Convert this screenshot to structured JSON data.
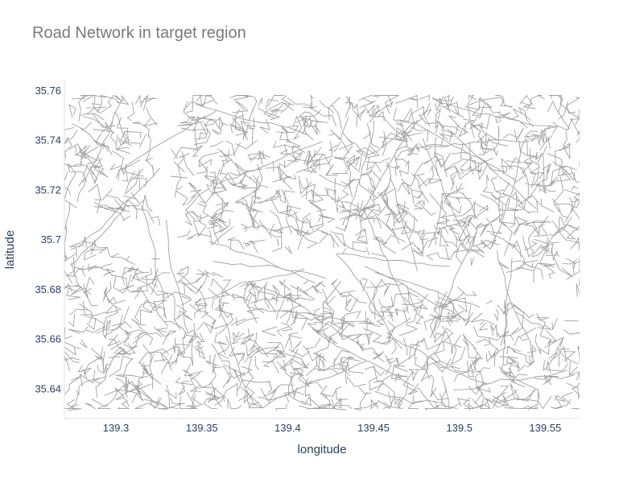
{
  "chart_data": {
    "type": "map-lines",
    "title": "Road Network in target region",
    "xlabel": "longitude",
    "ylabel": "latitude",
    "xlim": [
      139.27,
      139.57
    ],
    "ylim": [
      35.628,
      35.764
    ],
    "x_ticks": [
      139.3,
      139.35,
      139.4,
      139.45,
      139.5,
      139.55
    ],
    "y_ticks": [
      35.64,
      35.66,
      35.68,
      35.7,
      35.72,
      35.74,
      35.76
    ],
    "x_tick_labels": [
      "139.3",
      "139.35",
      "139.4",
      "139.45",
      "139.5",
      "139.55"
    ],
    "y_tick_labels": [
      "35.64",
      "35.66",
      "35.68",
      "35.7",
      "35.72",
      "35.74",
      "35.76"
    ],
    "data_extent": {
      "lon": [
        139.27,
        139.57
      ],
      "lat": [
        35.632,
        35.758
      ]
    },
    "series": [
      {
        "color": "#a0a0a0"
      }
    ],
    "grid": false
  }
}
